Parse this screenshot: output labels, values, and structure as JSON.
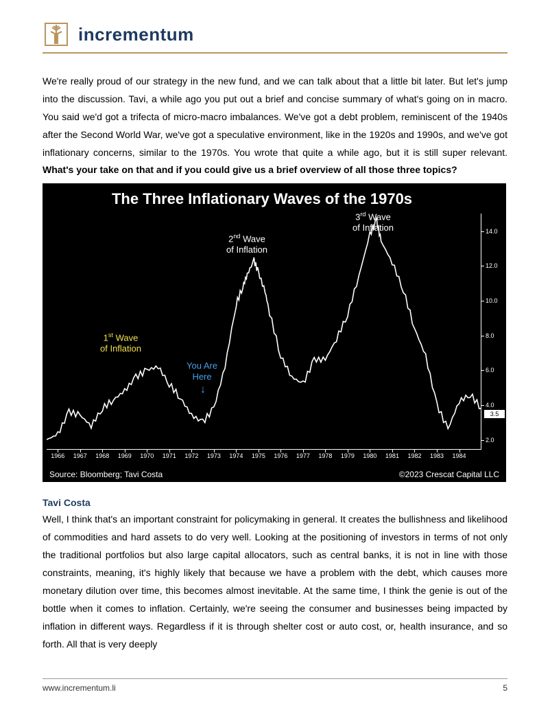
{
  "header": {
    "brand": "incrementum"
  },
  "paragraphs": {
    "intro_pre": "We're really proud of our strategy in the new fund, and we can talk about that a little bit later. But let's jump into the discussion. Tavi, a while ago you put out a brief and concise summary of what's going on in macro. You said we'd got a trifecta of micro-macro imbalances. We've got a debt problem, reminiscent of the 1940s after the Second World War, we've got a speculative environment, like in the 1920s and 1990s, and we've got inflationary concerns, similar to the 1970s. You wrote that quite a while ago, but it is still super relevant. ",
    "intro_bold": "What's your take on that and if you could give us a brief overview of all those three topics?",
    "response": "Well, I think that's an important constraint for policymaking in general. It creates the bullishness and likelihood of commodities and hard assets to do very well. Looking at the positioning of investors in terms of not only the traditional portfolios but also large capital allocators, such as central banks, it is not in line with those constraints, meaning, it's highly likely that because we have a problem with the debt, which causes more monetary dilution over time, this becomes almost inevitable. At the same time, I think the genie is out of the bottle when it comes to inflation. Certainly, we're seeing the consumer and businesses being impacted by inflation in different ways. Regardless if it is through shelter cost or auto cost, or, health insurance, and so forth. All that is very deeply"
  },
  "speaker": "Tavi Costa",
  "chart": {
    "title": "The Three Inflationary Waves of the 1970s",
    "source": "Source: Bloomberg; Tavi Costa",
    "copyright": "©2023 Crescat Capital LLC",
    "line_color": "#ffffff",
    "bg_color": "#000000",
    "yaxis": {
      "ticks": [
        2.0,
        4.0,
        6.0,
        8.0,
        10.0,
        12.0,
        14.0
      ],
      "highlight": 3.5,
      "min": 1.5,
      "max": 15.0
    },
    "xaxis": {
      "years": [
        1966,
        1967,
        1968,
        1969,
        1970,
        1971,
        1972,
        1973,
        1974,
        1975,
        1976,
        1977,
        1978,
        1979,
        1980,
        1981,
        1982,
        1983,
        1984
      ]
    },
    "series": [
      [
        1965.5,
        2.0
      ],
      [
        1966.0,
        2.3
      ],
      [
        1966.5,
        3.6
      ],
      [
        1967.0,
        3.4
      ],
      [
        1967.5,
        2.8
      ],
      [
        1968.0,
        3.8
      ],
      [
        1968.5,
        4.3
      ],
      [
        1969.0,
        4.8
      ],
      [
        1969.5,
        5.6
      ],
      [
        1970.0,
        6.0
      ],
      [
        1970.5,
        6.2
      ],
      [
        1971.0,
        5.2
      ],
      [
        1971.5,
        4.4
      ],
      [
        1972.0,
        3.4
      ],
      [
        1972.5,
        3.0
      ],
      [
        1973.0,
        3.8
      ],
      [
        1973.5,
        6.2
      ],
      [
        1974.0,
        9.8
      ],
      [
        1974.3,
        10.8
      ],
      [
        1974.5,
        11.5
      ],
      [
        1974.8,
        12.3
      ],
      [
        1975.0,
        11.6
      ],
      [
        1975.3,
        10.5
      ],
      [
        1975.5,
        9.3
      ],
      [
        1976.0,
        6.8
      ],
      [
        1976.5,
        5.6
      ],
      [
        1977.0,
        5.2
      ],
      [
        1977.5,
        6.6
      ],
      [
        1978.0,
        6.6
      ],
      [
        1978.5,
        7.8
      ],
      [
        1979.0,
        9.2
      ],
      [
        1979.5,
        11.4
      ],
      [
        1980.0,
        13.8
      ],
      [
        1980.3,
        14.6
      ],
      [
        1980.5,
        13.4
      ],
      [
        1981.0,
        12.2
      ],
      [
        1981.5,
        10.6
      ],
      [
        1982.0,
        8.4
      ],
      [
        1982.5,
        6.8
      ],
      [
        1983.0,
        4.0
      ],
      [
        1983.5,
        2.6
      ],
      [
        1984.0,
        4.2
      ],
      [
        1984.5,
        4.6
      ],
      [
        1985.0,
        3.8
      ]
    ],
    "annotations": {
      "wave1_label1": "1",
      "wave1_sup": "st",
      "wave1_rest": " Wave",
      "wave1_line2": "of Inflation",
      "wave2_label1": "2",
      "wave2_sup": "nd",
      "wave2_rest": " Wave",
      "wave2_line2": "of Inflation",
      "wave3_label1": "3",
      "wave3_sup": "rd",
      "wave3_rest": " Wave",
      "wave3_line2": "of Inflation",
      "you_here1": "You Are",
      "you_here2": "Here"
    }
  },
  "footer": {
    "url": "www.incrementum.li",
    "page": "5"
  }
}
